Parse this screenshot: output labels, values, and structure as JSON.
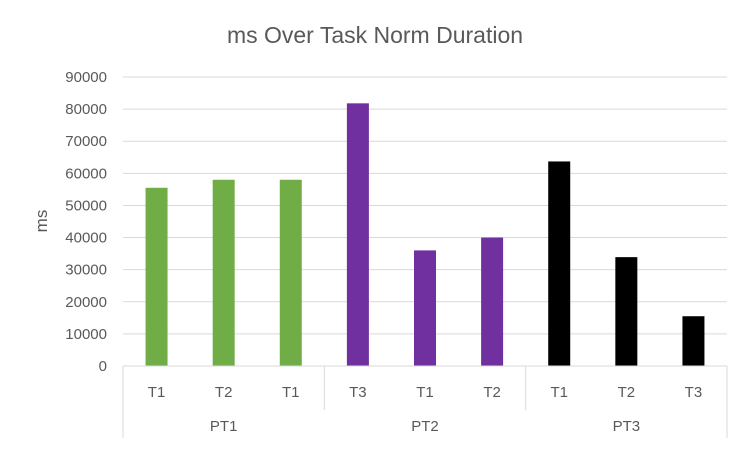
{
  "chart_data": {
    "type": "bar",
    "title": "ms Over Task Norm Duration",
    "xlabel": "",
    "ylabel": "ms",
    "ylim": [
      0,
      90000
    ],
    "yticks": [
      0,
      10000,
      20000,
      30000,
      40000,
      50000,
      60000,
      70000,
      80000,
      90000
    ],
    "grid": true,
    "legend": "none",
    "groups": [
      {
        "label": "PT1",
        "color": "#70ad47",
        "categories": [
          "T1",
          "T2",
          "T1"
        ],
        "values": [
          55500,
          58000,
          58000
        ]
      },
      {
        "label": "PT2",
        "color": "#7030a0",
        "categories": [
          "T3",
          "T1",
          "T2"
        ],
        "values": [
          81800,
          36000,
          40000
        ]
      },
      {
        "label": "PT3",
        "color": "#000000",
        "categories": [
          "T1",
          "T2",
          "T3"
        ],
        "values": [
          63700,
          33900,
          15500
        ]
      }
    ]
  }
}
